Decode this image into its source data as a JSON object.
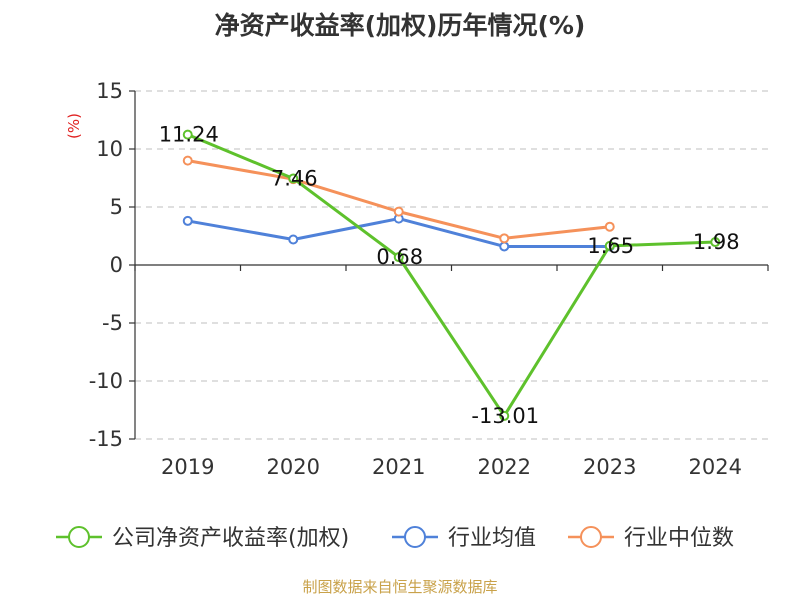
{
  "chart_data": {
    "type": "line",
    "title": "净资产收益率(加权)历年情况(%)",
    "ylabel": "(%)",
    "xlabel": "",
    "categories": [
      "2019",
      "2020",
      "2021",
      "2022",
      "2023",
      "2024"
    ],
    "ylim": [
      -15,
      15
    ],
    "yticks": [
      15,
      10,
      5,
      0,
      -5,
      -10,
      -15
    ],
    "grid": true,
    "legend_position": "bottom",
    "series": [
      {
        "name": "公司净资产收益率(加权)",
        "color": "#5ec12c",
        "values": [
          11.24,
          7.46,
          0.68,
          -13.01,
          1.65,
          1.98
        ],
        "labels": [
          "11.24",
          "7.46",
          "0.68",
          "-13.01",
          "1.65",
          "1.98"
        ]
      },
      {
        "name": "行业均值",
        "color": "#4f81d9",
        "values": [
          3.8,
          2.2,
          4.0,
          1.6,
          1.6,
          null
        ]
      },
      {
        "name": "行业中位数",
        "color": "#f5915a",
        "values": [
          9.0,
          7.4,
          4.6,
          2.3,
          3.3,
          null
        ]
      }
    ]
  },
  "source_text": "制图数据来自恒生聚源数据库",
  "source_color": "#c9a24a",
  "ylabel_color": "#e02020"
}
